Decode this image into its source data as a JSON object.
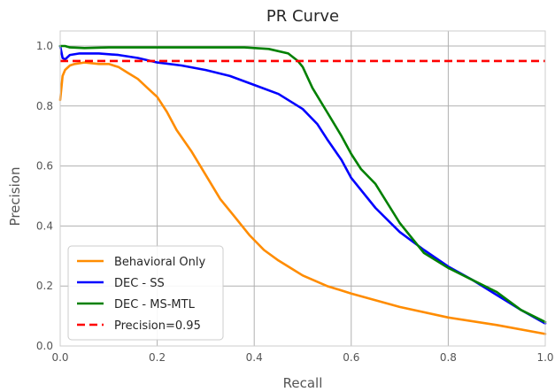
{
  "chart_data": {
    "type": "line",
    "title": "PR Curve",
    "xlabel": "Recall",
    "ylabel": "Precision",
    "xlim": [
      0.0,
      1.0
    ],
    "ylim": [
      0.0,
      1.05
    ],
    "xticks": [
      "0.0",
      "0.2",
      "0.4",
      "0.6",
      "0.8",
      "1.0"
    ],
    "yticks": [
      "0.0",
      "0.2",
      "0.4",
      "0.6",
      "0.8",
      "1.0"
    ],
    "grid": true,
    "legend_position": "lower-left",
    "series": [
      {
        "name": "Behavioral Only",
        "color": "#ff8c00",
        "style": "solid",
        "x": [
          0.0,
          0.005,
          0.01,
          0.02,
          0.03,
          0.05,
          0.08,
          0.1,
          0.12,
          0.14,
          0.16,
          0.18,
          0.2,
          0.22,
          0.24,
          0.27,
          0.3,
          0.33,
          0.36,
          0.39,
          0.42,
          0.45,
          0.48,
          0.5,
          0.55,
          0.6,
          0.7,
          0.8,
          0.9,
          1.0
        ],
        "y": [
          0.82,
          0.9,
          0.92,
          0.935,
          0.94,
          0.945,
          0.94,
          0.94,
          0.93,
          0.91,
          0.89,
          0.86,
          0.83,
          0.78,
          0.72,
          0.65,
          0.57,
          0.49,
          0.43,
          0.37,
          0.32,
          0.285,
          0.255,
          0.235,
          0.2,
          0.175,
          0.13,
          0.095,
          0.07,
          0.04
        ]
      },
      {
        "name": "DEC - SS",
        "color": "#0000ff",
        "style": "solid",
        "x": [
          0.0,
          0.005,
          0.01,
          0.02,
          0.04,
          0.08,
          0.12,
          0.16,
          0.2,
          0.25,
          0.3,
          0.35,
          0.4,
          0.45,
          0.5,
          0.53,
          0.55,
          0.58,
          0.6,
          0.65,
          0.7,
          0.75,
          0.8,
          0.85,
          0.9,
          0.95,
          1.0
        ],
        "y": [
          1.0,
          0.96,
          0.955,
          0.97,
          0.975,
          0.975,
          0.97,
          0.96,
          0.945,
          0.935,
          0.92,
          0.9,
          0.87,
          0.84,
          0.79,
          0.74,
          0.69,
          0.62,
          0.56,
          0.46,
          0.38,
          0.32,
          0.265,
          0.22,
          0.17,
          0.12,
          0.075
        ]
      },
      {
        "name": "DEC - MS-MTL",
        "color": "#008000",
        "style": "solid",
        "x": [
          0.0,
          0.01,
          0.02,
          0.05,
          0.1,
          0.2,
          0.3,
          0.38,
          0.43,
          0.47,
          0.49,
          0.5,
          0.52,
          0.55,
          0.58,
          0.6,
          0.62,
          0.65,
          0.7,
          0.75,
          0.8,
          0.85,
          0.9,
          0.95,
          1.0
        ],
        "y": [
          1.0,
          1.0,
          0.995,
          0.993,
          0.995,
          0.995,
          0.995,
          0.995,
          0.99,
          0.975,
          0.95,
          0.93,
          0.86,
          0.78,
          0.7,
          0.64,
          0.59,
          0.54,
          0.41,
          0.31,
          0.26,
          0.22,
          0.18,
          0.12,
          0.08
        ]
      },
      {
        "name": "Precision=0.95",
        "color": "#ff0000",
        "style": "dashed",
        "x": [
          0.0,
          1.0
        ],
        "y": [
          0.95,
          0.95
        ]
      }
    ]
  }
}
